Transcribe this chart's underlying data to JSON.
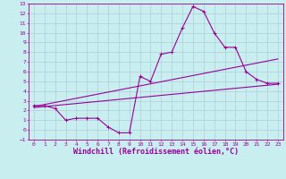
{
  "title": "",
  "xlabel": "Windchill (Refroidissement éolien,°C)",
  "ylabel": "",
  "background_color": "#c8eef0",
  "grid_color": "#b0cdd8",
  "line_color": "#990099",
  "xlim": [
    -0.5,
    23.5
  ],
  "ylim": [
    -1,
    13
  ],
  "xticks": [
    0,
    1,
    2,
    3,
    4,
    5,
    6,
    7,
    8,
    9,
    10,
    11,
    12,
    13,
    14,
    15,
    16,
    17,
    18,
    19,
    20,
    21,
    22,
    23
  ],
  "yticks": [
    -1,
    0,
    1,
    2,
    3,
    4,
    5,
    6,
    7,
    8,
    9,
    10,
    11,
    12,
    13
  ],
  "line1_x": [
    0,
    1,
    2,
    3,
    4,
    5,
    6,
    7,
    8,
    9,
    10,
    11,
    12,
    13,
    14,
    15,
    16,
    17,
    18,
    19,
    20,
    21,
    22,
    23
  ],
  "line1_y": [
    2.5,
    2.5,
    2.2,
    1.0,
    1.2,
    1.2,
    1.2,
    0.3,
    -0.3,
    -0.3,
    5.5,
    5.0,
    7.8,
    8.0,
    10.5,
    12.7,
    12.2,
    10.0,
    8.5,
    8.5,
    6.0,
    5.2,
    4.8,
    4.8
  ],
  "line2_x": [
    0,
    23
  ],
  "line2_y": [
    2.3,
    4.7
  ],
  "line3_x": [
    0,
    23
  ],
  "line3_y": [
    2.4,
    7.3
  ],
  "font_color": "#990099",
  "tick_fontsize": 4.5,
  "xlabel_fontsize": 6.0,
  "marker_size": 2.5,
  "line_width": 0.8
}
